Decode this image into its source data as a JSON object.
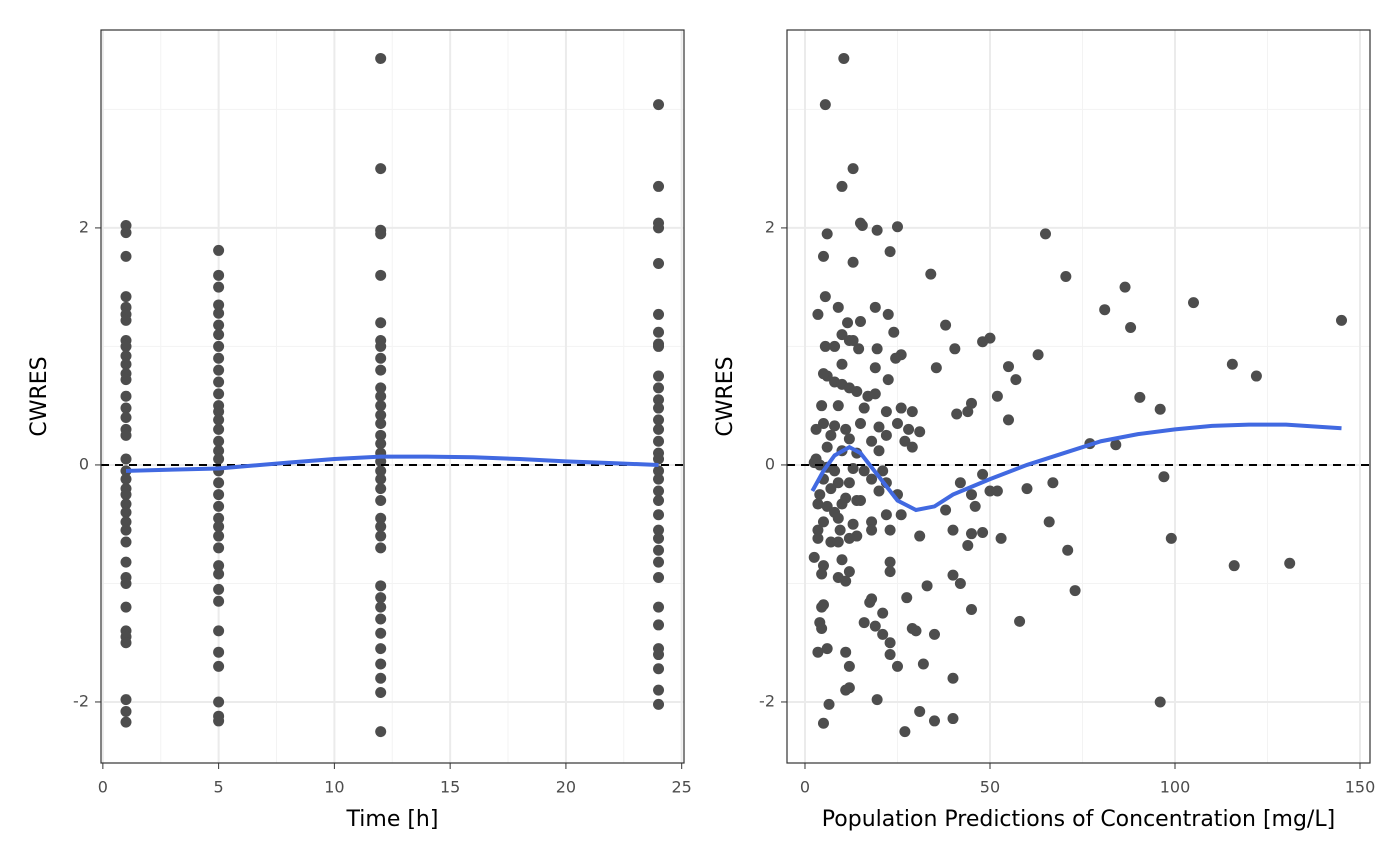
{
  "chart_data": [
    {
      "type": "scatter",
      "xlabel": "Time [h]",
      "ylabel": "CWRES",
      "xlim": [
        -0.08,
        25.1
      ],
      "ylim": [
        -2.515,
        3.67
      ],
      "xticks": [
        0,
        5,
        10,
        15,
        20,
        25
      ],
      "yticks": [
        -2,
        0,
        2
      ],
      "grid": true,
      "minor_grid": true,
      "hline": 0,
      "series": [
        {
          "type": "scatter",
          "color": "#4d4d4d",
          "x": [
            1,
            1,
            1,
            1,
            1,
            1,
            1,
            1,
            1,
            1,
            1,
            1,
            1,
            1,
            1,
            1,
            1,
            1,
            1,
            1,
            1,
            1,
            1,
            1,
            1,
            1,
            1,
            1,
            1,
            1,
            1,
            1,
            1,
            1,
            1,
            1,
            1,
            1,
            5,
            5,
            5,
            5,
            5,
            5,
            5,
            5,
            5,
            5,
            5,
            5,
            5,
            5,
            5,
            5,
            5,
            5,
            5,
            5,
            5,
            5,
            5,
            5,
            5,
            5,
            5,
            5,
            5,
            5,
            5,
            5,
            5,
            5,
            5,
            5,
            5,
            12,
            12,
            12,
            12,
            12,
            12,
            12,
            12,
            12,
            12,
            12,
            12,
            12,
            12,
            12,
            12,
            12,
            12,
            12,
            12,
            12,
            12,
            12,
            12,
            12,
            12,
            12,
            12,
            12,
            12,
            12,
            12,
            12,
            12,
            12,
            12,
            12,
            24,
            24,
            24,
            24,
            24,
            24,
            24,
            24,
            24,
            24,
            24,
            24,
            24,
            24,
            24,
            24,
            24,
            24,
            24,
            24,
            24,
            24,
            24,
            24,
            24,
            24,
            24,
            24,
            24,
            24,
            24,
            24,
            24,
            24,
            24
          ],
          "y": [
            2.02,
            1.96,
            1.76,
            1.42,
            1.33,
            1.27,
            1.22,
            1.05,
            1.0,
            0.92,
            0.85,
            0.77,
            0.72,
            0.58,
            0.48,
            0.4,
            0.3,
            0.25,
            0.05,
            -0.05,
            -0.12,
            -0.2,
            -0.25,
            -0.33,
            -0.4,
            -0.48,
            -0.55,
            -0.65,
            -0.82,
            -0.95,
            -1.0,
            -1.2,
            -1.4,
            -1.45,
            -1.5,
            -1.98,
            -2.08,
            -2.17,
            1.81,
            1.6,
            1.5,
            1.35,
            1.28,
            1.18,
            1.1,
            1.0,
            0.9,
            0.8,
            0.7,
            0.6,
            0.5,
            0.45,
            0.38,
            0.3,
            0.2,
            0.12,
            0.05,
            -0.05,
            -0.15,
            -0.25,
            -0.35,
            -0.45,
            -0.52,
            -0.6,
            -0.7,
            -0.85,
            -0.92,
            -1.05,
            -1.15,
            -1.4,
            -1.58,
            -1.7,
            -2.0,
            -2.12,
            -2.16,
            3.43,
            2.5,
            1.98,
            1.95,
            1.6,
            1.2,
            1.05,
            1.0,
            0.9,
            0.8,
            0.65,
            0.58,
            0.5,
            0.42,
            0.35,
            0.25,
            0.18,
            0.1,
            0.03,
            -0.05,
            -0.12,
            -0.2,
            -0.3,
            -0.45,
            -0.52,
            -0.6,
            -0.7,
            -1.02,
            -1.12,
            -1.2,
            -1.3,
            -1.42,
            -1.55,
            -1.68,
            -1.8,
            -1.92,
            -2.25,
            3.04,
            2.35,
            2.04,
            2.0,
            1.7,
            1.27,
            1.12,
            1.02,
            1.0,
            0.75,
            0.65,
            0.55,
            0.48,
            0.38,
            0.3,
            0.2,
            0.1,
            0.05,
            -0.05,
            -0.12,
            -0.22,
            -0.3,
            -0.42,
            -0.55,
            -0.62,
            -0.72,
            -0.82,
            -0.95,
            -1.2,
            -1.35,
            -1.55,
            -1.6,
            -1.72,
            -1.9,
            -2.02
          ]
        },
        {
          "type": "line",
          "color": "#4169e1",
          "x": [
            1,
            3,
            5,
            8,
            10,
            12,
            14,
            16,
            18,
            20,
            22,
            24
          ],
          "y": [
            -0.05,
            -0.04,
            -0.03,
            0.02,
            0.05,
            0.07,
            0.07,
            0.065,
            0.05,
            0.03,
            0.015,
            0.0
          ]
        }
      ]
    },
    {
      "type": "scatter",
      "xlabel": "Population Predictions of Concentration [mg/L]",
      "ylabel": "CWRES",
      "xlim": [
        -4.86,
        152.7
      ],
      "ylim": [
        -2.515,
        3.67
      ],
      "xticks": [
        0,
        50,
        100,
        150
      ],
      "yticks": [
        -2,
        0,
        2
      ],
      "grid": true,
      "minor_grid": true,
      "hline": 0,
      "series": [
        {
          "type": "scatter",
          "color": "#4d4d4d",
          "x": [
            10.5,
            5.5,
            13,
            10,
            15,
            15.5,
            25,
            19.5,
            6,
            65,
            23,
            5,
            13,
            34,
            70.5,
            86.5,
            5.5,
            105,
            19,
            81,
            9,
            3.5,
            22.5,
            15,
            11.5,
            38,
            88,
            145,
            24,
            10,
            12,
            13,
            50,
            48,
            5.5,
            8,
            19.5,
            40.5,
            14.5,
            26,
            24.5,
            63,
            115.5,
            35.5,
            55,
            10,
            19,
            122,
            22.5,
            57,
            6,
            5,
            8,
            10,
            12,
            14,
            17,
            19,
            90.5,
            52,
            45,
            96,
            4.5,
            9,
            16,
            22,
            26,
            29,
            41,
            44,
            55,
            5,
            8,
            11,
            15,
            20,
            25,
            28,
            31,
            3,
            7,
            12,
            18,
            22,
            27,
            29,
            77,
            84,
            6,
            10,
            14,
            20,
            3,
            2.5,
            4,
            6,
            8,
            13,
            16,
            21,
            48,
            97,
            5,
            9,
            12,
            18,
            22,
            42,
            60,
            67,
            4,
            7,
            11,
            14,
            20,
            25,
            45,
            50,
            52,
            3.5,
            6,
            8,
            10,
            15,
            38,
            46,
            5,
            9,
            13,
            18,
            22,
            26,
            3.5,
            9.5,
            14,
            18,
            23,
            40,
            45,
            48,
            53,
            66,
            3.5,
            7,
            9,
            12,
            31,
            44,
            71,
            99,
            2.5,
            5,
            10,
            23,
            23,
            4.5,
            9,
            11,
            12,
            40,
            42,
            73,
            33,
            116,
            131,
            18,
            27.5,
            17.5,
            5,
            4.5,
            21,
            45,
            4,
            16,
            19,
            4.5,
            29,
            30,
            35,
            21,
            58,
            23,
            6,
            3.5,
            11,
            23,
            25,
            12,
            32,
            40,
            12,
            11,
            19.5,
            96,
            6.5,
            31,
            40,
            35,
            5,
            27
          ],
          "y": [
            3.43,
            3.04,
            2.5,
            2.35,
            2.04,
            2.02,
            2.01,
            1.98,
            1.95,
            1.95,
            1.8,
            1.76,
            1.71,
            1.61,
            1.59,
            1.5,
            1.42,
            1.37,
            1.33,
            1.31,
            1.33,
            1.27,
            1.27,
            1.21,
            1.2,
            1.18,
            1.16,
            1.22,
            1.12,
            1.1,
            1.05,
            1.05,
            1.07,
            1.04,
            1.0,
            1.0,
            0.98,
            0.98,
            0.98,
            0.93,
            0.9,
            0.93,
            0.85,
            0.82,
            0.83,
            0.85,
            0.82,
            0.75,
            0.72,
            0.72,
            0.75,
            0.77,
            0.7,
            0.68,
            0.65,
            0.62,
            0.58,
            0.6,
            0.57,
            0.58,
            0.52,
            0.47,
            0.5,
            0.5,
            0.48,
            0.45,
            0.48,
            0.45,
            0.43,
            0.45,
            0.38,
            0.35,
            0.33,
            0.3,
            0.35,
            0.32,
            0.35,
            0.3,
            0.28,
            0.3,
            0.25,
            0.22,
            0.2,
            0.25,
            0.2,
            0.15,
            0.18,
            0.17,
            0.15,
            0.12,
            0.1,
            0.12,
            0.05,
            0.02,
            0.0,
            -0.02,
            -0.05,
            -0.03,
            -0.05,
            -0.05,
            -0.08,
            -0.1,
            -0.12,
            -0.15,
            -0.15,
            -0.12,
            -0.15,
            -0.15,
            -0.2,
            -0.15,
            -0.25,
            -0.2,
            -0.28,
            -0.3,
            -0.22,
            -0.25,
            -0.25,
            -0.22,
            -0.22,
            -0.33,
            -0.35,
            -0.4,
            -0.33,
            -0.3,
            -0.38,
            -0.35,
            -0.48,
            -0.45,
            -0.5,
            -0.48,
            -0.42,
            -0.42,
            -0.55,
            -0.55,
            -0.6,
            -0.55,
            -0.55,
            -0.55,
            -0.58,
            -0.57,
            -0.62,
            -0.48,
            -0.62,
            -0.65,
            -0.65,
            -0.62,
            -0.6,
            -0.68,
            -0.72,
            -0.62,
            -0.78,
            -0.85,
            -0.8,
            -0.82,
            -0.9,
            -0.92,
            -0.95,
            -0.98,
            -0.9,
            -0.93,
            -1.0,
            -1.06,
            -1.02,
            -0.85,
            -0.83,
            -1.13,
            -1.12,
            -1.16,
            -1.18,
            -1.2,
            -1.25,
            -1.22,
            -1.33,
            -1.33,
            -1.36,
            -1.38,
            -1.38,
            -1.4,
            -1.43,
            -1.43,
            -1.32,
            -1.5,
            -1.55,
            -1.58,
            -1.58,
            -1.6,
            -1.7,
            -1.7,
            -1.68,
            -1.8,
            -1.88,
            -1.9,
            -1.98,
            -2.0,
            -2.02,
            -2.08,
            -2.14,
            -2.16,
            -2.18,
            -2.25
          ]
        },
        {
          "type": "line",
          "color": "#4169e1",
          "x": [
            2,
            5,
            8,
            12,
            15,
            20,
            25,
            30,
            35,
            40,
            50,
            60,
            70,
            80,
            90,
            100,
            110,
            120,
            130,
            145
          ],
          "y": [
            -0.22,
            -0.05,
            0.08,
            0.15,
            0.1,
            -0.1,
            -0.3,
            -0.38,
            -0.35,
            -0.25,
            -0.12,
            0.0,
            0.1,
            0.2,
            0.26,
            0.3,
            0.33,
            0.34,
            0.34,
            0.31
          ]
        }
      ]
    }
  ]
}
